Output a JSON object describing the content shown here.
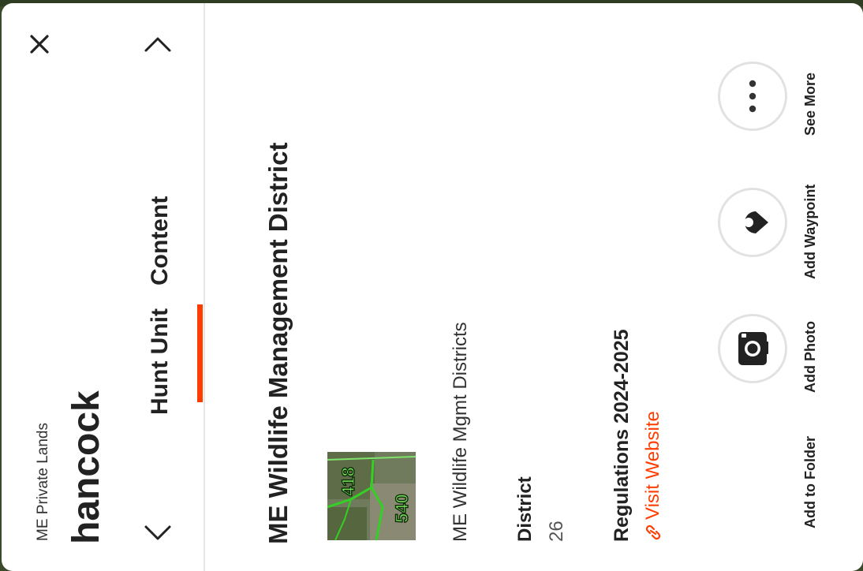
{
  "header": {
    "subtitle": "ME Private Lands",
    "title": "hancock"
  },
  "tabs": [
    {
      "label": "Hunt Unit",
      "active": true
    },
    {
      "label": "Content",
      "active": false
    }
  ],
  "detail": {
    "heading": "ME Wildlife Management District",
    "layer_name": "ME Wildlife Mgmt Districts",
    "district_label": "District",
    "district_value": "26",
    "regulations_label": "Regulations 2024-2025",
    "visit_link": "Visit Website",
    "thumbnail_labels": [
      "418",
      "540"
    ]
  },
  "actions": [
    {
      "label": "Add to Folder",
      "icon": "folder-icon"
    },
    {
      "label": "Add Photo",
      "icon": "camera-icon"
    },
    {
      "label": "Add Waypoint",
      "icon": "waypoint-pin-icon"
    },
    {
      "label": "See More",
      "icon": "more-dots-icon"
    }
  ],
  "colors": {
    "accent": "#ff3d00",
    "text": "#222222",
    "link": "#ff3d00"
  }
}
